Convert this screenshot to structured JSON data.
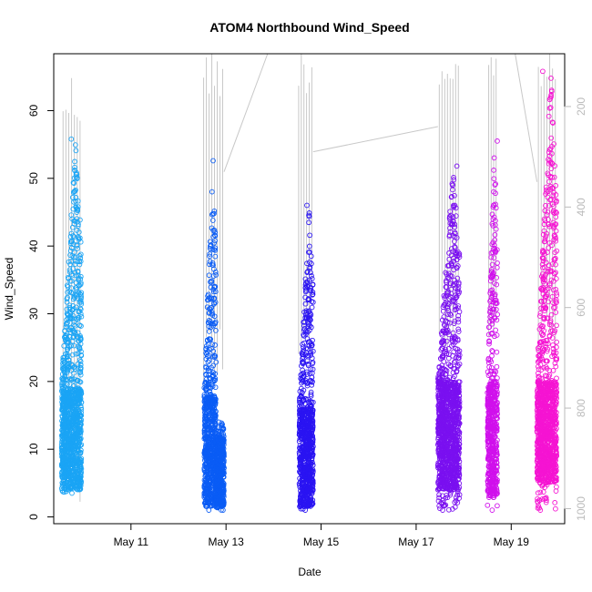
{
  "chart_data": {
    "type": "scatter",
    "title": "ATOM4 Northbound Wind_Speed",
    "xlabel": "Date",
    "ylabel": "Wind_Speed",
    "x_ticks": [
      "May 11",
      "May 13",
      "May 15",
      "May 17",
      "May 19"
    ],
    "y_ticks": [
      0,
      10,
      20,
      30,
      40,
      50,
      60
    ],
    "y_right_ticks": [
      200,
      400,
      600,
      800,
      1000
    ],
    "xlim": [
      "2013-05-09T09:00",
      "2013-05-20T03:00"
    ],
    "ylim": [
      -1.0,
      68.4
    ],
    "y_right_lim": [
      1030,
      95
    ],
    "grid": false,
    "legend": "none",
    "right_axis_color": "#bbbbbb",
    "series": [
      {
        "color": "#1aa4f5",
        "segments": [
          {
            "x_start": "2013-05-09T13:00",
            "x_end": "2013-05-09T23:00",
            "y_min": 3.5,
            "y_max": 55.8,
            "dense_low": 4,
            "dense_high": 19
          }
        ]
      },
      {
        "color": "#0a5cf5",
        "segments": [
          {
            "x_start": "2013-05-12T13:00",
            "x_end": "2013-05-12T19:00",
            "y_min": 1.0,
            "y_max": 52.6,
            "dense_low": 1.5,
            "dense_high": 18
          },
          {
            "x_start": "2013-05-12T19:00",
            "x_end": "2013-05-12T23:00",
            "y_min": 1.0,
            "y_max": 14,
            "dense_low": 1.5,
            "dense_high": 12
          }
        ]
      },
      {
        "color": "#2a14f2",
        "segments": [
          {
            "x_start": "2013-05-14T13:00",
            "x_end": "2013-05-14T20:00",
            "y_min": 1.0,
            "y_max": 46.0,
            "dense_low": 1.5,
            "dense_high": 16
          }
        ]
      },
      {
        "color": "#7a10f0",
        "segments": [
          {
            "x_start": "2013-05-17T11:00",
            "x_end": "2013-05-17T22:00",
            "y_min": 1.0,
            "y_max": 51.8,
            "dense_low": 4,
            "dense_high": 20
          }
        ]
      },
      {
        "color": "#d010ec",
        "segments": [
          {
            "x_start": "2013-05-18T12:00",
            "x_end": "2013-05-18T17:00",
            "y_min": 1.0,
            "y_max": 55.5,
            "dense_low": 3,
            "dense_high": 20
          }
        ]
      },
      {
        "color": "#f514d2",
        "segments": [
          {
            "x_start": "2013-05-19T13:00",
            "x_end": "2013-05-19T23:00",
            "y_min": 1.0,
            "y_max": 65.8,
            "dense_low": 5,
            "dense_high": 20
          }
        ]
      }
    ],
    "right_axis_lines": {
      "color": "#c8c8c8",
      "groups": [
        {
          "x_start": "2013-05-09T13:00",
          "x_end": "2013-05-09T23:00",
          "y_min": 120,
          "y_max": 1030
        },
        {
          "x_start": "2013-05-12T12:00",
          "x_end": "2013-05-12T23:00",
          "y_min": 80,
          "y_max": 800
        },
        {
          "x_start": "2013-05-14T12:00",
          "x_end": "2013-05-14T20:00",
          "y_min": 80,
          "y_max": 720
        },
        {
          "x_start": "2013-05-17T11:00",
          "x_end": "2013-05-17T22:00",
          "y_min": 80,
          "y_max": 700
        },
        {
          "x_start": "2013-05-18T12:00",
          "x_end": "2013-05-18T17:00",
          "y_min": 80,
          "y_max": 660
        },
        {
          "x_start": "2013-05-19T13:00",
          "x_end": "2013-05-19T23:00",
          "y_min": 80,
          "y_max": 740
        }
      ],
      "connectors": [
        {
          "x1": "2013-05-12T23:00",
          "y1": 330,
          "x2": "2013-05-13T21:00",
          "y2": 90
        },
        {
          "x1": "2013-05-14T20:00",
          "y1": 290,
          "x2": "2013-05-17T11:00",
          "y2": 240
        },
        {
          "x1": "2013-05-19T02:00",
          "y1": 90,
          "x2": "2013-05-19T13:00",
          "y2": 350
        }
      ]
    }
  }
}
